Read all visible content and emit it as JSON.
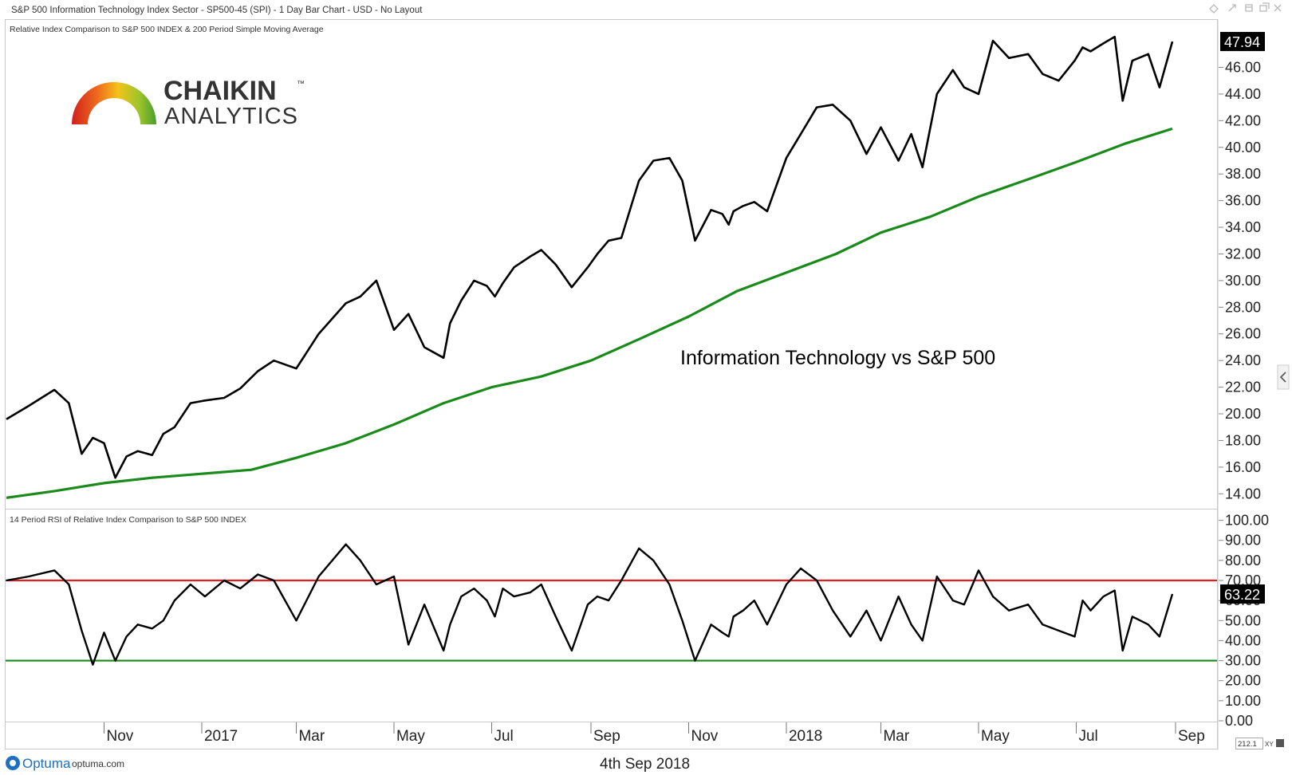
{
  "header": {
    "title": "S&P 500 Information Technology Index Sector - SP500-45 (SPI) - 1 Day Bar Chart - USD - No Layout"
  },
  "panels": {
    "main_caption": "Relative Index Comparison to S&P 500 INDEX & 200 Period Simple Moving Average",
    "rsi_caption": "14 Period RSI of Relative Index Comparison to S&P 500 INDEX",
    "annotation": "Information Technology vs S&P 500"
  },
  "logo": {
    "line1": "CHAIKIN",
    "tm": "™",
    "line2": "ANALYTICS"
  },
  "footer": {
    "brand": "Optuma",
    "site": "optuma.com",
    "date": "4th Sep 2018",
    "zoom_value": "212.1",
    "xy_label": "XY"
  },
  "colors": {
    "price_line": "#000000",
    "sma_line": "#1a8a1a",
    "rsi_upper_line": "#e02020",
    "rsi_lower_line": "#1a8a1a"
  },
  "chart_data": [
    {
      "type": "line",
      "panel": "main",
      "title": "Relative Index Comparison to S&P 500 INDEX & 200 Period Simple Moving Average",
      "ylim": [
        13.0,
        49.5
      ],
      "yticks": [
        "14.00",
        "16.00",
        "18.00",
        "20.00",
        "22.00",
        "24.00",
        "26.00",
        "28.00",
        "30.00",
        "32.00",
        "34.00",
        "36.00",
        "38.00",
        "40.00",
        "42.00",
        "44.00",
        "46.00"
      ],
      "last_value_label": "47.94",
      "x_axis_ticks": [
        "Nov",
        "2017",
        "Mar",
        "May",
        "Jul",
        "Sep",
        "Nov",
        "2018",
        "Mar",
        "May",
        "Jul",
        "Sep"
      ],
      "series": [
        {
          "role": "price",
          "x": [
            "2016-09-01",
            "2016-09-15",
            "2016-10-01",
            "2016-10-10",
            "2016-10-18",
            "2016-10-25",
            "2016-11-01",
            "2016-11-08",
            "2016-11-15",
            "2016-11-22",
            "2016-12-01",
            "2016-12-08",
            "2016-12-15",
            "2016-12-25",
            "2017-01-03",
            "2017-01-15",
            "2017-01-25",
            "2017-02-05",
            "2017-02-15",
            "2017-03-01",
            "2017-03-15",
            "2017-04-01",
            "2017-04-10",
            "2017-04-20",
            "2017-05-01",
            "2017-05-10",
            "2017-05-20",
            "2017-06-01",
            "2017-06-05",
            "2017-06-12",
            "2017-06-20",
            "2017-06-28",
            "2017-07-03",
            "2017-07-08",
            "2017-07-15",
            "2017-07-25",
            "2017-08-01",
            "2017-08-10",
            "2017-08-20",
            "2017-08-30",
            "2017-09-05",
            "2017-09-12",
            "2017-09-20",
            "2017-10-01",
            "2017-10-10",
            "2017-10-20",
            "2017-10-28",
            "2017-11-05",
            "2017-11-15",
            "2017-11-22",
            "2017-11-26",
            "2017-11-29",
            "2017-12-05",
            "2017-12-12",
            "2017-12-20",
            "2018-01-01",
            "2018-01-10",
            "2018-01-20",
            "2018-01-30",
            "2018-02-10",
            "2018-02-20",
            "2018-03-01",
            "2018-03-12",
            "2018-03-20",
            "2018-03-27",
            "2018-04-05",
            "2018-04-15",
            "2018-04-22",
            "2018-05-01",
            "2018-05-10",
            "2018-05-20",
            "2018-06-01",
            "2018-06-10",
            "2018-06-20",
            "2018-06-30",
            "2018-07-05",
            "2018-07-10",
            "2018-07-18",
            "2018-07-25",
            "2018-07-30",
            "2018-08-05",
            "2018-08-15",
            "2018-08-22",
            "2018-08-30"
          ],
          "values": [
            19.6,
            20.6,
            21.8,
            20.8,
            17.0,
            18.2,
            17.8,
            15.2,
            16.8,
            17.2,
            16.9,
            18.5,
            19.0,
            20.8,
            21.0,
            21.2,
            21.9,
            23.2,
            24.0,
            23.4,
            26.0,
            28.3,
            28.8,
            30.0,
            26.3,
            27.5,
            25.0,
            24.2,
            26.8,
            28.5,
            30.0,
            29.6,
            28.8,
            29.8,
            31.0,
            31.8,
            32.3,
            31.2,
            29.5,
            31.0,
            32.0,
            33.0,
            33.2,
            37.5,
            39.0,
            39.2,
            37.5,
            33.0,
            35.3,
            35.0,
            34.2,
            35.2,
            35.6,
            35.9,
            35.2,
            39.2,
            41.0,
            43.0,
            43.2,
            42.0,
            39.5,
            41.5,
            39.0,
            41.0,
            38.5,
            44.0,
            45.8,
            44.5,
            44.0,
            48.0,
            46.7,
            47.0,
            45.5,
            45.0,
            46.5,
            47.5,
            47.2,
            47.8,
            48.3,
            43.5,
            46.5,
            47.0,
            44.5,
            47.94
          ]
        },
        {
          "role": "sma200",
          "x": [
            "2016-09-01",
            "2016-10-01",
            "2016-11-01",
            "2016-12-01",
            "2017-01-01",
            "2017-02-01",
            "2017-03-01",
            "2017-04-01",
            "2017-05-01",
            "2017-06-01",
            "2017-07-01",
            "2017-08-01",
            "2017-09-01",
            "2017-10-01",
            "2017-11-01",
            "2017-12-01",
            "2018-01-01",
            "2018-02-01",
            "2018-03-01",
            "2018-04-01",
            "2018-05-01",
            "2018-06-01",
            "2018-07-01",
            "2018-08-01",
            "2018-08-30"
          ],
          "values": [
            13.7,
            14.2,
            14.8,
            15.2,
            15.5,
            15.8,
            16.7,
            17.8,
            19.2,
            20.8,
            22.0,
            22.8,
            24.0,
            25.6,
            27.3,
            29.2,
            30.6,
            32.0,
            33.6,
            34.8,
            36.3,
            37.6,
            38.9,
            40.3,
            41.4
          ]
        }
      ]
    },
    {
      "type": "line",
      "panel": "rsi",
      "title": "14 Period RSI of Relative Index Comparison to S&P 500 INDEX",
      "ylim": [
        0,
        105
      ],
      "yticks": [
        "0.00",
        "10.00",
        "20.00",
        "30.00",
        "40.00",
        "50.00",
        "60.00",
        "70.00",
        "80.00",
        "90.00",
        "100.00"
      ],
      "overbought": 70,
      "oversold": 30,
      "last_value_label": "63.22",
      "series": [
        {
          "role": "rsi",
          "x": [
            "2016-09-01",
            "2016-09-15",
            "2016-10-01",
            "2016-10-10",
            "2016-10-18",
            "2016-10-25",
            "2016-11-01",
            "2016-11-08",
            "2016-11-15",
            "2016-11-22",
            "2016-12-01",
            "2016-12-08",
            "2016-12-15",
            "2016-12-25",
            "2017-01-03",
            "2017-01-15",
            "2017-01-25",
            "2017-02-05",
            "2017-02-15",
            "2017-03-01",
            "2017-03-15",
            "2017-04-01",
            "2017-04-10",
            "2017-04-20",
            "2017-05-01",
            "2017-05-10",
            "2017-05-20",
            "2017-06-01",
            "2017-06-05",
            "2017-06-12",
            "2017-06-20",
            "2017-06-28",
            "2017-07-03",
            "2017-07-08",
            "2017-07-15",
            "2017-07-25",
            "2017-08-01",
            "2017-08-10",
            "2017-08-20",
            "2017-08-30",
            "2017-09-05",
            "2017-09-12",
            "2017-09-20",
            "2017-10-01",
            "2017-10-10",
            "2017-10-20",
            "2017-10-28",
            "2017-11-05",
            "2017-11-15",
            "2017-11-22",
            "2017-11-26",
            "2017-11-29",
            "2017-12-05",
            "2017-12-12",
            "2017-12-20",
            "2018-01-01",
            "2018-01-10",
            "2018-01-20",
            "2018-01-30",
            "2018-02-10",
            "2018-02-20",
            "2018-03-01",
            "2018-03-12",
            "2018-03-20",
            "2018-03-27",
            "2018-04-05",
            "2018-04-15",
            "2018-04-22",
            "2018-05-01",
            "2018-05-10",
            "2018-05-20",
            "2018-06-01",
            "2018-06-10",
            "2018-06-20",
            "2018-06-30",
            "2018-07-05",
            "2018-07-10",
            "2018-07-18",
            "2018-07-25",
            "2018-07-30",
            "2018-08-05",
            "2018-08-15",
            "2018-08-22",
            "2018-08-30"
          ],
          "values": [
            70,
            72,
            75,
            68,
            45,
            28,
            44,
            30,
            42,
            48,
            46,
            50,
            60,
            68,
            62,
            70,
            66,
            73,
            70,
            50,
            72,
            88,
            80,
            68,
            72,
            38,
            58,
            35,
            48,
            62,
            66,
            60,
            52,
            66,
            62,
            64,
            68,
            52,
            35,
            58,
            62,
            60,
            70,
            86,
            80,
            68,
            50,
            30,
            48,
            44,
            42,
            52,
            55,
            60,
            48,
            68,
            76,
            70,
            55,
            42,
            55,
            40,
            62,
            48,
            40,
            72,
            60,
            58,
            75,
            62,
            55,
            58,
            48,
            45,
            42,
            60,
            55,
            62,
            65,
            35,
            52,
            48,
            42,
            63.22
          ]
        }
      ]
    }
  ]
}
